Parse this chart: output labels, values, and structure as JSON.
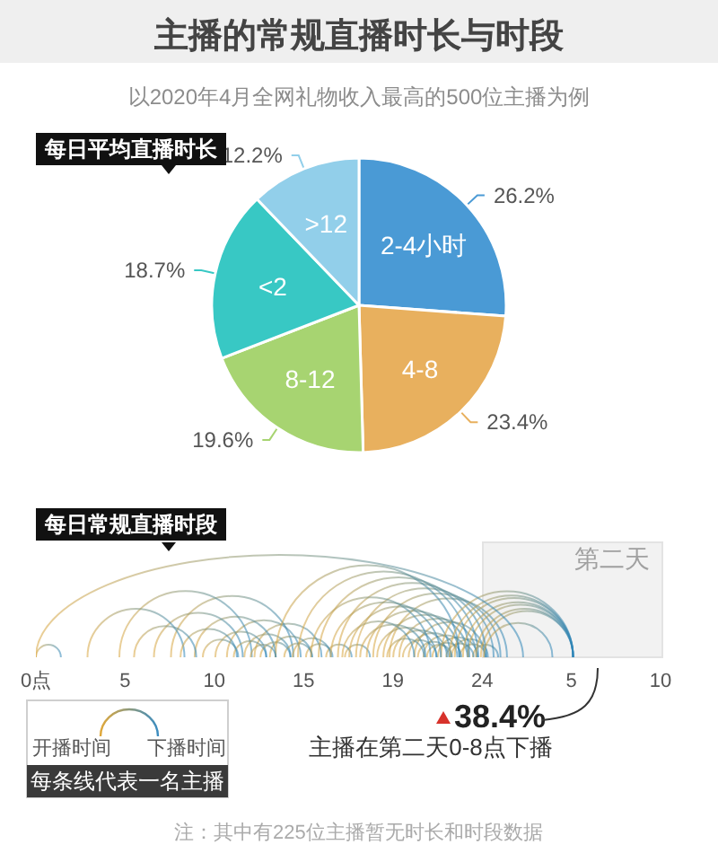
{
  "chart_data": [
    {
      "type": "pie",
      "title": "主播的常规直播时长与时段",
      "subtitle": "以2020年4月全网礼物收入最高的500位主播为例",
      "annotations": [
        "每日平均直播时长"
      ],
      "categories": [
        "2-4小时",
        "4-8",
        "8-12",
        "<2",
        ">12"
      ],
      "values": [
        26.2,
        23.4,
        19.6,
        18.7,
        12.2
      ],
      "colors": [
        "#4a9ad5",
        "#e8b05e",
        "#a7d471",
        "#38c8c4",
        "#92cfea"
      ],
      "value_labels": [
        "26.2%",
        "23.4%",
        "19.6%",
        "18.7%",
        "12.2%"
      ]
    },
    {
      "type": "other",
      "title": "每日常规直播时段",
      "categories": [
        "0点",
        "5",
        "10",
        "15",
        "19",
        "24",
        "5",
        "10"
      ],
      "annotations": [
        "第二天",
        "38.4%",
        "主播在第二天0-8点下播",
        "开播时间",
        "下播时间",
        "每条线代表一名主播",
        "注：其中有225位主播暂无时长和时段数据"
      ]
    }
  ]
}
